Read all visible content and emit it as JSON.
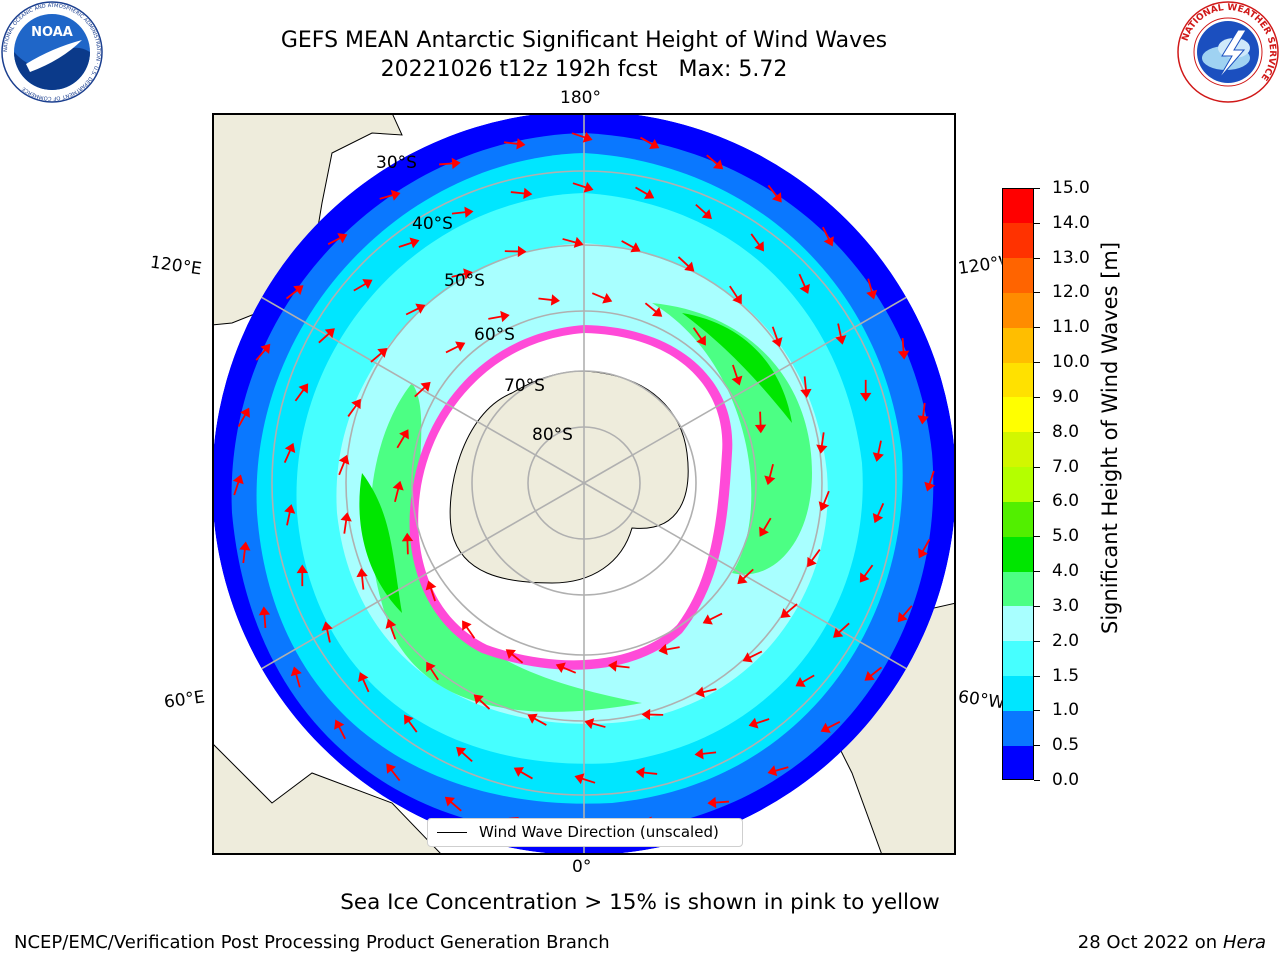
{
  "title": {
    "line1": "GEFS MEAN Antarctic Significant Height of Wind Waves",
    "line2": "20221026 t12z 192h fcst   Max: 5.72"
  },
  "logos": {
    "noaa": {
      "text": "NOAA",
      "ring_text": "NATIONAL OCEANIC AND ATMOSPHERIC ADMINISTRATION · U.S. DEPARTMENT OF COMMERCE"
    },
    "nws": {
      "ring_text": "NATIONAL WEATHER SERVICE"
    }
  },
  "map": {
    "projection": "south-polar-stereographic",
    "longitude_labels": {
      "top": "180°",
      "bottom": "0°",
      "upper_left": "120°E",
      "upper_right": "120°W",
      "lower_left": "60°E",
      "lower_right": "60°W"
    },
    "latitude_labels": [
      "30°S",
      "40°S",
      "50°S",
      "60°S",
      "70°S",
      "80°S"
    ],
    "colors": {
      "land": "#eeecdc",
      "ocean_outer": "#0000ff",
      "ice_edge": "#ff4ad8",
      "grid": "#b0b0b0"
    }
  },
  "legend": {
    "label": "Wind Wave Direction (unscaled)"
  },
  "colorbar": {
    "label": "Significant Height of Wind Waves [m]",
    "ticks": [
      "0.0",
      "0.5",
      "1.0",
      "1.5",
      "2.0",
      "3.0",
      "4.0",
      "5.0",
      "6.0",
      "7.0",
      "8.0",
      "9.0",
      "10.0",
      "11.0",
      "12.0",
      "13.0",
      "14.0",
      "15.0"
    ],
    "colors": [
      "#0000ff",
      "#0a78ff",
      "#00e6ff",
      "#46ffff",
      "#a8ffff",
      "#4cff84",
      "#00e600",
      "#52ef00",
      "#b4ff00",
      "#d2f700",
      "#ffff00",
      "#ffe100",
      "#ffbe00",
      "#ff8c00",
      "#ff6400",
      "#ff3200",
      "#ff0000"
    ]
  },
  "ice_note": "Sea Ice Concentration > 15% is shown in pink to yellow",
  "footer": {
    "left": "NCEP/EMC/Verification Post Processing Product Generation Branch",
    "date": "28 Oct 2022 on ",
    "machine": "Hera"
  }
}
